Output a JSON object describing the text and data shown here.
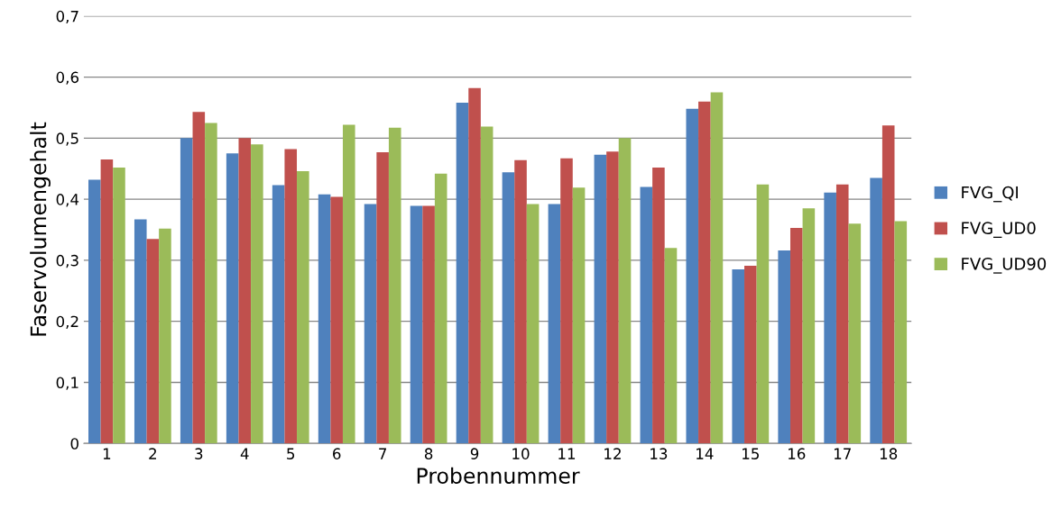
{
  "chart_data": {
    "type": "bar",
    "xlabel": "Probennummer",
    "ylabel": "Faservolumengehalt",
    "categories": [
      "1",
      "2",
      "3",
      "4",
      "5",
      "6",
      "7",
      "8",
      "9",
      "10",
      "11",
      "12",
      "13",
      "14",
      "15",
      "16",
      "17",
      "18"
    ],
    "series": [
      {
        "name": "FVG_QI",
        "color": "#4f81bd",
        "values": [
          0.432,
          0.367,
          0.5,
          0.475,
          0.423,
          0.408,
          0.392,
          0.389,
          0.558,
          0.444,
          0.392,
          0.473,
          0.42,
          0.548,
          0.285,
          0.316,
          0.411,
          0.435
        ]
      },
      {
        "name": "FVG_UD0",
        "color": "#c0504d",
        "values": [
          0.465,
          0.335,
          0.543,
          0.5,
          0.482,
          0.404,
          0.477,
          0.389,
          0.582,
          0.464,
          0.467,
          0.478,
          0.452,
          0.56,
          0.291,
          0.353,
          0.424,
          0.521
        ]
      },
      {
        "name": "FVG_UD90",
        "color": "#9bbb59",
        "values": [
          0.452,
          0.352,
          0.525,
          0.49,
          0.446,
          0.522,
          0.517,
          0.442,
          0.519,
          0.392,
          0.419,
          0.5,
          0.32,
          0.575,
          0.424,
          0.385,
          0.36,
          0.364
        ]
      }
    ],
    "ylim": [
      0,
      0.7
    ],
    "yticks": [
      0,
      {
        "value": 0.1,
        "label": "0,1"
      },
      {
        "value": 0.2,
        "label": "0,2"
      },
      {
        "value": 0.3,
        "label": "0,3"
      },
      {
        "value": 0.4,
        "label": "0,4"
      },
      {
        "value": 0.5,
        "label": "0,5"
      },
      {
        "value": 0.6,
        "label": "0,6"
      },
      {
        "value": 0.7,
        "label": "0,7"
      }
    ],
    "grid": "y",
    "legend": "right"
  }
}
